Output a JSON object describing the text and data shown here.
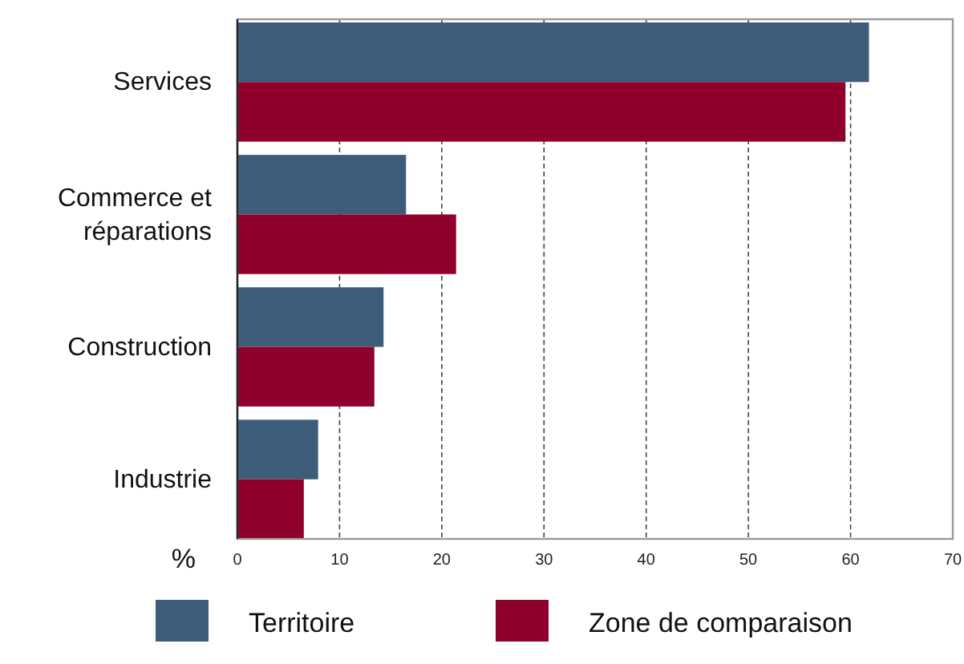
{
  "chart_data": {
    "type": "bar",
    "orientation": "horizontal",
    "xlabel": "%",
    "categories": [
      "Services",
      "Commerce et réparations",
      "Construction",
      "Industrie"
    ],
    "series": [
      {
        "name": "Territoire",
        "color": "#3d5c7a",
        "values": [
          61.8,
          16.5,
          14.3,
          7.9
        ]
      },
      {
        "name": "Zone de comparaison",
        "color": "#8f002c",
        "values": [
          59.5,
          21.4,
          13.4,
          6.5
        ]
      }
    ],
    "xlim": [
      0,
      70
    ],
    "xticks": [
      0,
      10,
      20,
      30,
      40,
      50,
      60,
      70
    ],
    "grid": "x",
    "legend": "bottom"
  }
}
